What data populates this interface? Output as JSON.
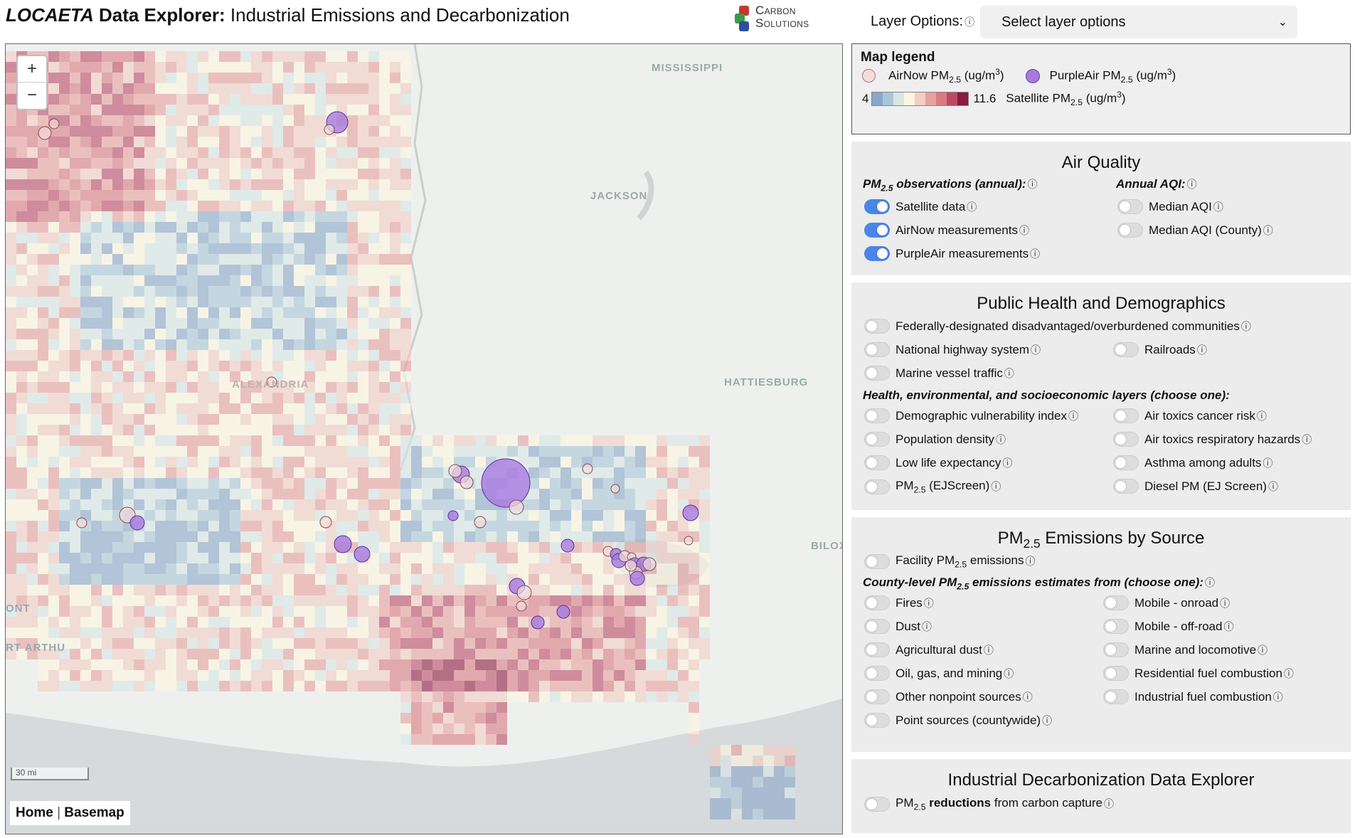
{
  "header": {
    "title_brand": "LOCAETA",
    "title_bold": " Data Explorer:",
    "title_rest": " Industrial Emissions and Decarbonization",
    "logo_line1": "Carbon",
    "logo_line2": "Solutions",
    "layer_label": "Layer Options:",
    "layer_select_value": "Select layer options"
  },
  "map": {
    "zoom_in": "+",
    "zoom_out": "−",
    "scale_label": "30 mi",
    "home_link": "Home",
    "separator": "|",
    "basemap_link": "Basemap",
    "city_labels": [
      "MISSISSIPPI",
      "JACKSON",
      "HATTIESBURG",
      "ALEXANDRIA",
      "BILOX",
      "ONT",
      "RT ARTHU"
    ]
  },
  "legend": {
    "title": "Map legend",
    "airnow_label": "AirNow PM",
    "purpleair_label": "PurpleAir PM",
    "pm_sub": "2.5",
    "unit_prefix": " (ug/m",
    "unit_sup": "3",
    "unit_suffix": ")",
    "scale_min": "4",
    "scale_max": "11.6",
    "satellite_label": "Satellite PM",
    "colors": [
      "#8aa6c8",
      "#a9c6d8",
      "#d7e6e4",
      "#fdf6df",
      "#f3cdc5",
      "#e8a0a0",
      "#d97a82",
      "#bb4a66",
      "#8c1a40"
    ],
    "airnow_color": "#f5dcdc",
    "purpleair_color": "#a779e0"
  },
  "air_quality": {
    "title": "Air Quality",
    "obs_label": "PM",
    "obs_sub": "2.5",
    "obs_suffix": " observations (annual):",
    "aqi_label": "Annual AQI:",
    "items": [
      {
        "label": "Satellite data",
        "on": true
      },
      {
        "label": "AirNow measurements",
        "on": true
      },
      {
        "label": "PurpleAir measurements",
        "on": true
      }
    ],
    "aqi_items": [
      {
        "label": "Median AQI",
        "on": false
      },
      {
        "label": "Median AQI (County)",
        "on": false
      }
    ]
  },
  "public_health": {
    "title": "Public Health and Demographics",
    "item_disadvantaged": "Federally-designated disadvantaged/overburdened communities",
    "item_highway": "National highway system",
    "item_railroads": "Railroads",
    "item_marine": "Marine vessel traffic",
    "choose_label": "Health, environmental, and socioeconomic layers (choose one):",
    "left_items": [
      "Demographic vulnerability index",
      "Population density",
      "Low life expectancy"
    ],
    "pm_ejscreen_prefix": "PM",
    "pm_ejscreen_sub": "2.5",
    "pm_ejscreen_suffix": " (EJScreen)",
    "right_items": [
      "Air toxics cancer risk",
      "Air toxics respiratory hazards",
      "Asthma among adults",
      "Diesel PM (EJ Screen)"
    ]
  },
  "emissions": {
    "title_prefix": "PM",
    "title_sub": "2.5",
    "title_suffix": " Emissions by Source",
    "facility_prefix": "Facility PM",
    "facility_sub": "2.5",
    "facility_suffix": " emissions",
    "county_prefix": "County-level PM",
    "county_sub": "2.5",
    "county_suffix": " emissions estimates from (choose one):",
    "left_items": [
      "Fires",
      "Dust",
      "Agricultural dust",
      "Oil, gas, and mining",
      "Other nonpoint sources",
      "Point sources (countywide)"
    ],
    "right_items": [
      "Mobile - onroad",
      "Mobile - off-road",
      "Marine and locomotive",
      "Residential fuel combustion",
      "Industrial fuel combustion"
    ]
  },
  "decarbonization": {
    "title": "Industrial Decarbonization Data Explorer",
    "item_prefix": "PM",
    "item_sub": "2.5",
    "item_bold": " reductions",
    "item_suffix": " from carbon capture"
  },
  "info_glyph": "ⓘ"
}
